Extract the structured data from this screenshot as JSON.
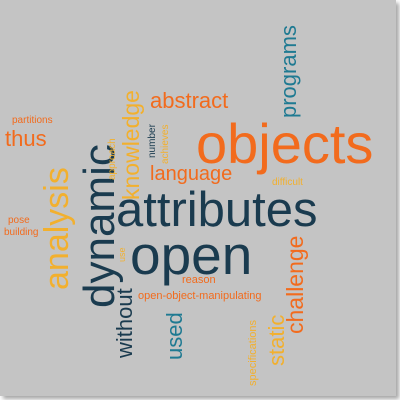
{
  "palette": {
    "background": "#c4c4c4",
    "navy": "#1a3b4f",
    "orange": "#f26b1d",
    "gold": "#f2b02e",
    "teal": "#1f7a92"
  },
  "words": {
    "attributes": "attributes",
    "open": "open",
    "objects": "objects",
    "dynamic": "dynamic",
    "analysis": "analysis",
    "knowledge": "knowledge",
    "abstract": "abstract",
    "programs": "programs",
    "language": "language",
    "thus": "thus",
    "partitions": "partitions",
    "approach": "approach",
    "number": "number",
    "achieves": "achieves",
    "difficult": "difficult",
    "pose": "pose",
    "building": "building",
    "use": "use",
    "reason": "reason",
    "without": "without",
    "open_object_manipulating": "open-object-manipulating",
    "used": "used",
    "static": "static",
    "challenge": "challenge",
    "specifications": "specifications"
  }
}
